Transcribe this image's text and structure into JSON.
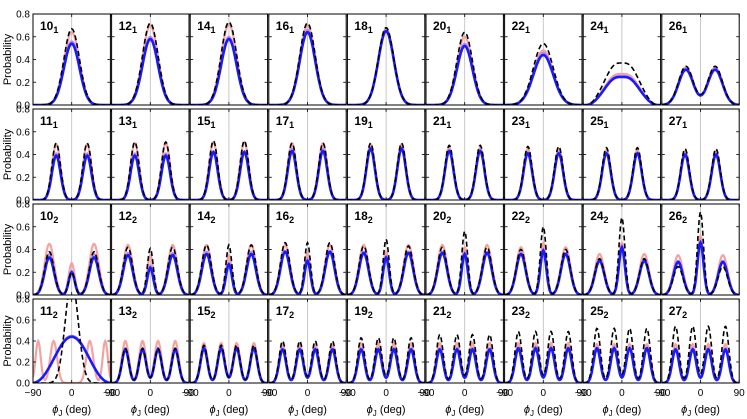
{
  "figure": {
    "ylabel": "Probability",
    "xlabel": "ϕ_J (deg)",
    "x_ticks": [
      "−90",
      "0",
      "90"
    ],
    "y_ticks": [
      "0.0",
      "0.2",
      "0.4",
      "0.6",
      "0.8"
    ],
    "colors": {
      "dashed": "#000000",
      "light": "#f4a3a3",
      "mid": "#c78be0",
      "thick": "#1a1aff"
    }
  },
  "chart_data": {
    "type": "line",
    "layout": "grid of small multiples, 4 rows x 9 columns, shared axes",
    "xlim": [
      -90,
      90
    ],
    "ylim": [
      0,
      0.8
    ],
    "x_ticks": [
      -90,
      0,
      90
    ],
    "y_ticks": [
      0,
      0.2,
      0.4,
      0.6,
      0.8
    ],
    "xlabel": "ϕ_J (deg)",
    "ylabel": "Probability",
    "grid": false,
    "vertical_reference_line_at": 0,
    "series_styles": [
      {
        "style": "dashed",
        "color": "#000000"
      },
      {
        "style": "solid thin",
        "color": "#f4a3a3"
      },
      {
        "style": "solid thin",
        "color": "#c78be0"
      },
      {
        "style": "solid thick",
        "color": "#1a1aff"
      }
    ],
    "panels": [
      {
        "label": "10",
        "sub": "1",
        "shape": "one-peak",
        "peaks": {
          "dashed": 0.67,
          "light": 0.64,
          "mid": 0.56,
          "thick": 0.54
        }
      },
      {
        "label": "12",
        "sub": "1",
        "shape": "one-peak",
        "peaks": {
          "dashed": 0.72,
          "light": 0.7,
          "mid": 0.6,
          "thick": 0.58
        }
      },
      {
        "label": "14",
        "sub": "1",
        "shape": "one-peak",
        "peaks": {
          "dashed": 0.73,
          "light": 0.71,
          "mid": 0.6,
          "thick": 0.58
        }
      },
      {
        "label": "16",
        "sub": "1",
        "shape": "one-peak",
        "peaks": {
          "dashed": 0.72,
          "light": 0.7,
          "mid": 0.66,
          "thick": 0.64
        }
      },
      {
        "label": "18",
        "sub": "1",
        "shape": "one-peak",
        "peaks": {
          "dashed": 0.68,
          "light": 0.67,
          "mid": 0.66,
          "thick": 0.65
        }
      },
      {
        "label": "20",
        "sub": "1",
        "shape": "one-peak",
        "peaks": {
          "dashed": 0.64,
          "light": 0.6,
          "mid": 0.54,
          "thick": 0.52
        }
      },
      {
        "label": "22",
        "sub": "1",
        "shape": "one-peak-broad",
        "peaks": {
          "dashed": 0.54,
          "light": 0.48,
          "mid": 0.46,
          "thick": 0.44
        }
      },
      {
        "label": "24",
        "sub": "1",
        "shape": "plateau",
        "peaks": {
          "dashed": 0.42,
          "light": 0.31,
          "mid": 0.29,
          "thick": 0.28
        }
      },
      {
        "label": "26",
        "sub": "1",
        "shape": "double-dip",
        "peaks": {
          "dashed": 0.34,
          "light": 0.33,
          "mid": 0.32,
          "thick": 0.31
        }
      },
      {
        "label": "11",
        "sub": "1",
        "shape": "two-peak",
        "peaks": {
          "dashed": 0.5,
          "light": 0.49,
          "mid": 0.41,
          "thick": 0.39
        }
      },
      {
        "label": "13",
        "sub": "1",
        "shape": "two-peak",
        "peaks": {
          "dashed": 0.51,
          "light": 0.5,
          "mid": 0.41,
          "thick": 0.39
        }
      },
      {
        "label": "15",
        "sub": "1",
        "shape": "two-peak",
        "peaks": {
          "dashed": 0.52,
          "light": 0.51,
          "mid": 0.43,
          "thick": 0.42
        }
      },
      {
        "label": "17",
        "sub": "1",
        "shape": "two-peak",
        "peaks": {
          "dashed": 0.5,
          "light": 0.5,
          "mid": 0.45,
          "thick": 0.43
        }
      },
      {
        "label": "19",
        "sub": "1",
        "shape": "two-peak",
        "peaks": {
          "dashed": 0.5,
          "light": 0.49,
          "mid": 0.46,
          "thick": 0.45
        }
      },
      {
        "label": "21",
        "sub": "1",
        "shape": "two-peak",
        "peaks": {
          "dashed": 0.48,
          "light": 0.46,
          "mid": 0.44,
          "thick": 0.43
        }
      },
      {
        "label": "23",
        "sub": "1",
        "shape": "two-peak",
        "peaks": {
          "dashed": 0.47,
          "light": 0.45,
          "mid": 0.42,
          "thick": 0.41
        }
      },
      {
        "label": "25",
        "sub": "1",
        "shape": "two-peak",
        "peaks": {
          "dashed": 0.46,
          "light": 0.44,
          "mid": 0.42,
          "thick": 0.41
        }
      },
      {
        "label": "27",
        "sub": "1",
        "shape": "two-peak",
        "peaks": {
          "dashed": 0.45,
          "light": 0.43,
          "mid": 0.41,
          "thick": 0.4
        }
      },
      {
        "label": "10",
        "sub": "2",
        "shape": "three-peak",
        "peaks": {
          "dashed": 0.38,
          "light": 0.45,
          "mid": 0.36,
          "thick": 0.33
        },
        "center": {
          "dashed": 0.2,
          "light": 0.28,
          "mid": 0.21,
          "thick": 0.2
        }
      },
      {
        "label": "12",
        "sub": "2",
        "shape": "three-peak",
        "peaks": {
          "dashed": 0.42,
          "light": 0.44,
          "mid": 0.37,
          "thick": 0.35
        },
        "center": {
          "dashed": 0.41,
          "light": 0.35,
          "mid": 0.26,
          "thick": 0.24
        }
      },
      {
        "label": "14",
        "sub": "2",
        "shape": "three-peak",
        "peaks": {
          "dashed": 0.44,
          "light": 0.44,
          "mid": 0.38,
          "thick": 0.36
        },
        "center": {
          "dashed": 0.44,
          "light": 0.35,
          "mid": 0.28,
          "thick": 0.27
        }
      },
      {
        "label": "16",
        "sub": "2",
        "shape": "three-peak",
        "peaks": {
          "dashed": 0.46,
          "light": 0.44,
          "mid": 0.39,
          "thick": 0.38
        },
        "center": {
          "dashed": 0.46,
          "light": 0.37,
          "mid": 0.32,
          "thick": 0.3
        }
      },
      {
        "label": "18",
        "sub": "2",
        "shape": "three-peak",
        "peaks": {
          "dashed": 0.43,
          "light": 0.44,
          "mid": 0.38,
          "thick": 0.37
        },
        "center": {
          "dashed": 0.49,
          "light": 0.38,
          "mid": 0.34,
          "thick": 0.33
        }
      },
      {
        "label": "20",
        "sub": "2",
        "shape": "three-peak",
        "peaks": {
          "dashed": 0.42,
          "light": 0.44,
          "mid": 0.38,
          "thick": 0.37
        },
        "center": {
          "dashed": 0.56,
          "light": 0.42,
          "mid": 0.37,
          "thick": 0.36
        }
      },
      {
        "label": "22",
        "sub": "2",
        "shape": "three-peak",
        "peaks": {
          "dashed": 0.4,
          "light": 0.42,
          "mid": 0.37,
          "thick": 0.36
        },
        "center": {
          "dashed": 0.6,
          "light": 0.46,
          "mid": 0.4,
          "thick": 0.39
        }
      },
      {
        "label": "24",
        "sub": "2",
        "shape": "three-peak",
        "peaks": {
          "dashed": 0.32,
          "light": 0.36,
          "mid": 0.31,
          "thick": 0.3
        },
        "center": {
          "dashed": 0.68,
          "light": 0.46,
          "mid": 0.43,
          "thick": 0.42
        }
      },
      {
        "label": "26",
        "sub": "2",
        "shape": "three-peak",
        "peaks": {
          "dashed": 0.25,
          "light": 0.35,
          "mid": 0.3,
          "thick": 0.29
        },
        "center": {
          "dashed": 0.73,
          "light": 0.52,
          "mid": 0.48,
          "thick": 0.46
        }
      },
      {
        "label": "11",
        "sub": "2",
        "shape": "special",
        "peaks": {
          "dashed": 0.98,
          "light": 0.4,
          "mid": 0.45,
          "thick": 0.44
        }
      },
      {
        "label": "13",
        "sub": "2",
        "shape": "four-peak",
        "peaks": {
          "dashed": 0.33,
          "light": 0.4,
          "mid": 0.33,
          "thick": 0.32
        }
      },
      {
        "label": "15",
        "sub": "2",
        "shape": "four-peak",
        "peaks": {
          "dashed": 0.36,
          "light": 0.38,
          "mid": 0.34,
          "thick": 0.33
        }
      },
      {
        "label": "17",
        "sub": "2",
        "shape": "four-peak",
        "peaks": {
          "dashed": 0.4,
          "light": 0.37,
          "mid": 0.33,
          "thick": 0.32
        }
      },
      {
        "label": "19",
        "sub": "2",
        "shape": "four-peak",
        "peaks": {
          "dashed": 0.43,
          "light": 0.38,
          "mid": 0.33,
          "thick": 0.32
        }
      },
      {
        "label": "21",
        "sub": "2",
        "shape": "four-peak",
        "peaks": {
          "dashed": 0.46,
          "light": 0.38,
          "mid": 0.33,
          "thick": 0.32
        }
      },
      {
        "label": "23",
        "sub": "2",
        "shape": "four-peak",
        "peaks": {
          "dashed": 0.49,
          "light": 0.38,
          "mid": 0.34,
          "thick": 0.33
        }
      },
      {
        "label": "25",
        "sub": "2",
        "shape": "four-peak",
        "peaks": {
          "dashed": 0.52,
          "light": 0.37,
          "mid": 0.34,
          "thick": 0.33
        }
      },
      {
        "label": "27",
        "sub": "2",
        "shape": "four-peak",
        "peaks": {
          "dashed": 0.54,
          "light": 0.37,
          "mid": 0.33,
          "thick": 0.32
        }
      }
    ]
  }
}
